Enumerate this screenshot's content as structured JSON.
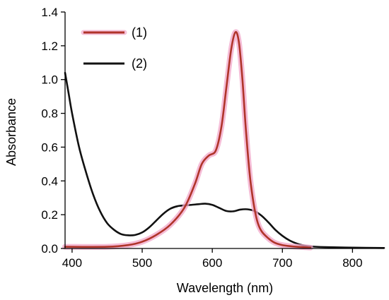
{
  "chart_data": {
    "type": "line",
    "title": "",
    "xlabel": "Wavelength (nm)",
    "ylabel": "Absorbance",
    "xlim": [
      390,
      845
    ],
    "ylim": [
      0,
      1.4
    ],
    "xticks": [
      400,
      500,
      600,
      700,
      800
    ],
    "yticks": [
      0.0,
      0.2,
      0.4,
      0.6,
      0.8,
      1.0,
      1.2,
      1.4
    ],
    "ytick_labels": [
      "0.0",
      "0.2",
      "0.4",
      "0.6",
      "0.8",
      "1.0",
      "1.2",
      "1.4"
    ],
    "grid": false,
    "legend": "top-left",
    "series": [
      {
        "name": "(1)",
        "color": "#b0342a",
        "glow": "#f2a6c8",
        "x": [
          390,
          450,
          480,
          500,
          520,
          540,
          560,
          575,
          585,
          595,
          605,
          613,
          620,
          627,
          633,
          638,
          643,
          648,
          655,
          665,
          680,
          700,
          740
        ],
        "y": [
          0.01,
          0.01,
          0.02,
          0.04,
          0.08,
          0.14,
          0.24,
          0.38,
          0.5,
          0.55,
          0.58,
          0.72,
          0.95,
          1.18,
          1.28,
          1.22,
          1.0,
          0.7,
          0.38,
          0.15,
          0.06,
          0.02,
          0.005
        ]
      },
      {
        "name": "(2)",
        "color": "#111111",
        "x": [
          390,
          395,
          400,
          410,
          420,
          430,
          440,
          450,
          460,
          470,
          480,
          490,
          500,
          510,
          520,
          530,
          540,
          550,
          560,
          570,
          580,
          590,
          600,
          610,
          620,
          630,
          640,
          650,
          660,
          670,
          680,
          690,
          700,
          710,
          720,
          730,
          740,
          760,
          800,
          845
        ],
        "y": [
          1.04,
          0.92,
          0.8,
          0.6,
          0.45,
          0.32,
          0.22,
          0.15,
          0.11,
          0.085,
          0.078,
          0.08,
          0.095,
          0.125,
          0.165,
          0.205,
          0.235,
          0.25,
          0.255,
          0.258,
          0.262,
          0.265,
          0.258,
          0.24,
          0.222,
          0.22,
          0.23,
          0.232,
          0.222,
          0.195,
          0.155,
          0.11,
          0.075,
          0.048,
          0.03,
          0.018,
          0.012,
          0.008,
          0.005,
          0.003
        ]
      }
    ]
  }
}
